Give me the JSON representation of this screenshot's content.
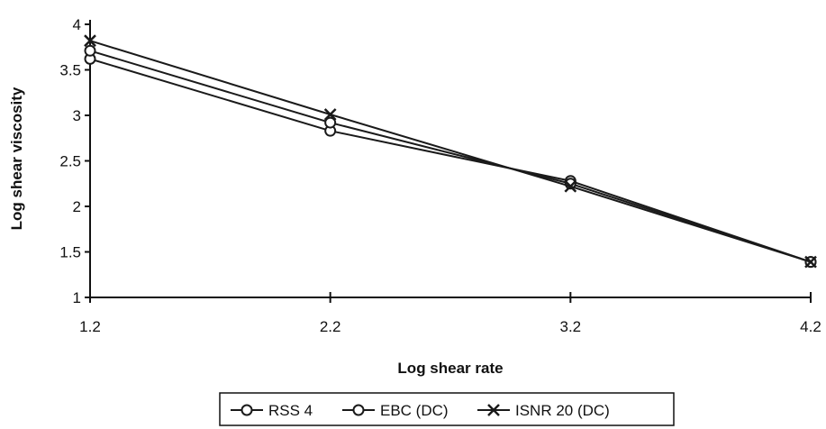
{
  "chart_data": {
    "type": "line",
    "title": "",
    "xlabel": "Log shear rate",
    "ylabel": "Log shear viscosity",
    "x": [
      1.2,
      2.2,
      3.2,
      4.2
    ],
    "x_tick_labels": [
      "1.2",
      "2.2",
      "3.2",
      "4.2"
    ],
    "y_tick_labels": [
      "1",
      "1.5",
      "2",
      "2.5",
      "3",
      "3.5",
      "4"
    ],
    "xlim": [
      1.2,
      4.2
    ],
    "ylim": [
      1,
      4
    ],
    "grid": false,
    "legend_position": "bottom",
    "series": [
      {
        "name": "RSS 4",
        "marker": "circle",
        "values": [
          3.62,
          2.83,
          2.28,
          1.39
        ]
      },
      {
        "name": "EBC (DC)",
        "marker": "circle",
        "values": [
          3.71,
          2.92,
          2.25,
          1.39
        ]
      },
      {
        "name": "ISNR 20 (DC)",
        "marker": "x",
        "values": [
          3.82,
          3.01,
          2.22,
          1.39
        ]
      }
    ],
    "line_color": "#1a1a1a"
  }
}
